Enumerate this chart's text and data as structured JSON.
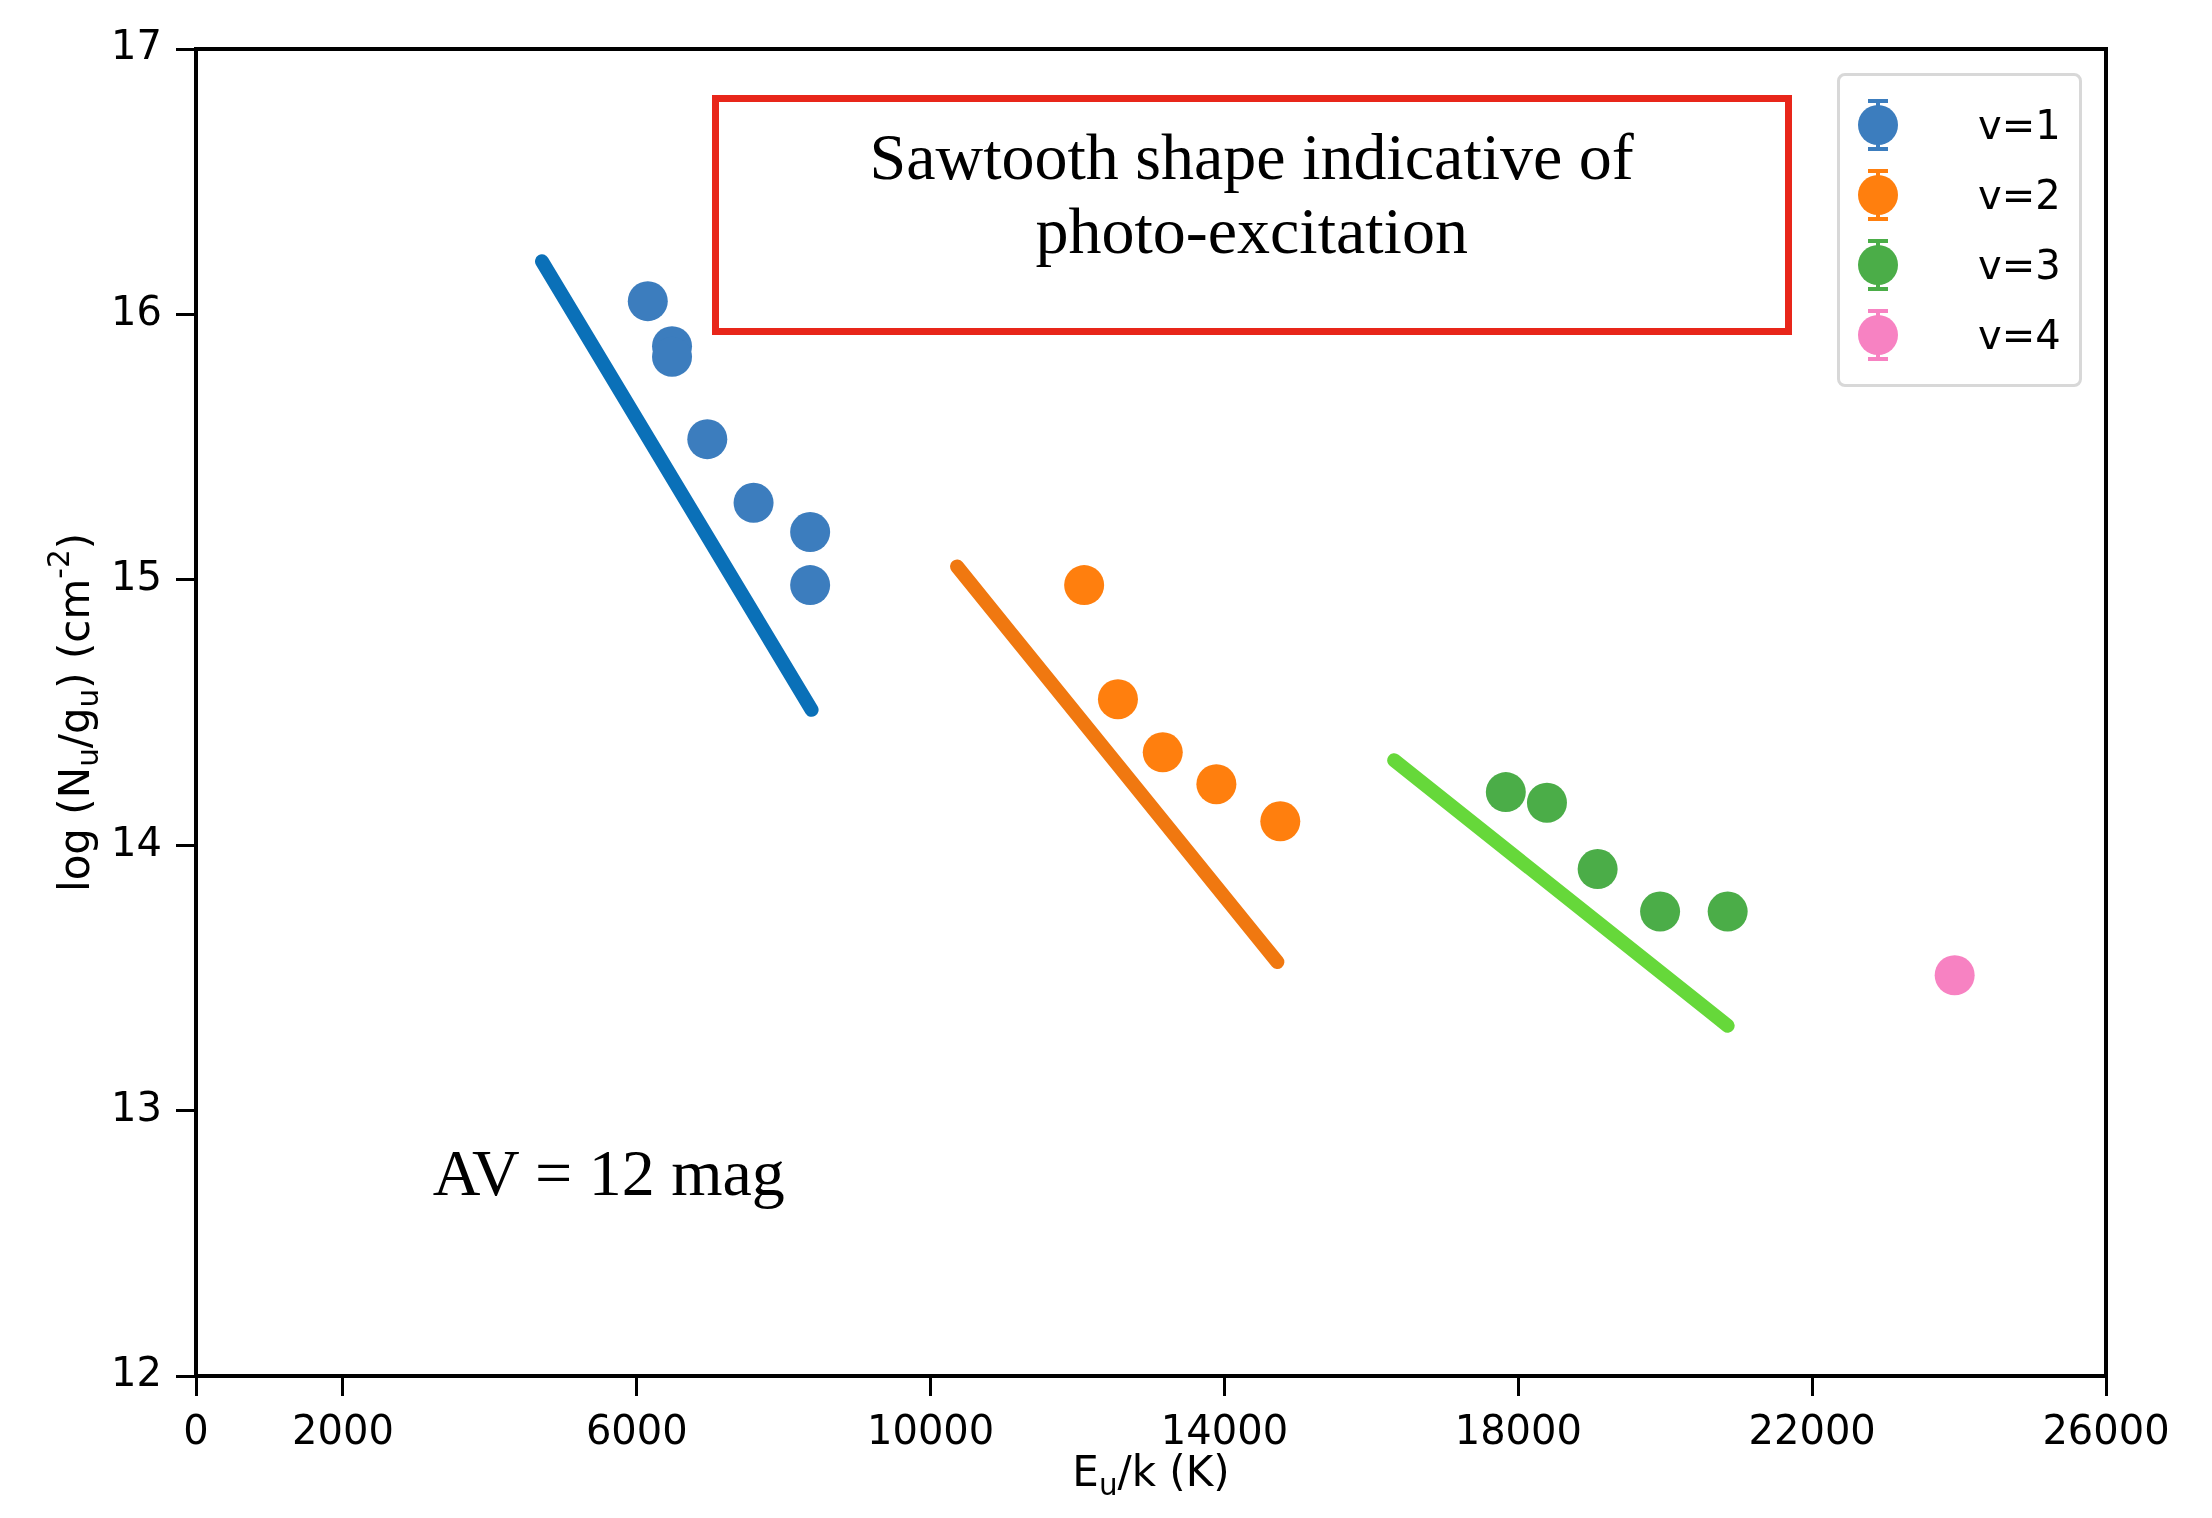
{
  "chart_data": {
    "type": "scatter",
    "xlabel": "E$_{u}$/k (K)",
    "ylabel": "log (N$_{u}$/g$_{u}$) (cm$^{-2}$)",
    "xlim": [
      0,
      26000
    ],
    "xticks": [
      0,
      2000,
      6000,
      10000,
      14000,
      18000,
      22000,
      26000
    ],
    "ylim": [
      12,
      17
    ],
    "yticks": [
      12,
      13,
      14,
      15,
      16,
      17
    ],
    "marker": "circle",
    "legend": "top right",
    "annotations": [
      "Sawtooth shape indicative of photo-excitation",
      "AV = 12 mag"
    ],
    "series": [
      {
        "name": "v=1",
        "color": "#3c7dbe",
        "x": [
          6150,
          6480,
          6480,
          6960,
          7590,
          8360,
          8360
        ],
        "values": [
          16.05,
          15.88,
          15.84,
          15.53,
          15.29,
          15.18,
          14.98
        ]
      },
      {
        "name": "v=2",
        "color": "#ff7f0e",
        "x": [
          12090,
          12550,
          13160,
          13890,
          14760
        ],
        "values": [
          14.98,
          14.55,
          14.35,
          14.23,
          14.09
        ]
      },
      {
        "name": "v=3",
        "color": "#4bad48",
        "x": [
          17830,
          18390,
          19080,
          19930,
          20850
        ],
        "values": [
          14.2,
          14.16,
          13.91,
          13.75,
          13.75
        ]
      },
      {
        "name": "v=4",
        "color": "#f782c2",
        "x": [
          23940
        ],
        "values": [
          13.51
        ]
      },
      {
        "type": "line",
        "marker": "none",
        "color": "#0a70b8",
        "x": [
          4710,
          8380
        ],
        "values": [
          16.2,
          14.51
        ]
      },
      {
        "type": "line",
        "marker": "none",
        "color": "#f07810",
        "x": [
          10360,
          14720
        ],
        "values": [
          15.05,
          13.56
        ]
      },
      {
        "type": "line",
        "marker": "none",
        "color": "#66d83a",
        "x": [
          16310,
          20850
        ],
        "values": [
          14.32,
          13.32
        ]
      }
    ]
  }
}
